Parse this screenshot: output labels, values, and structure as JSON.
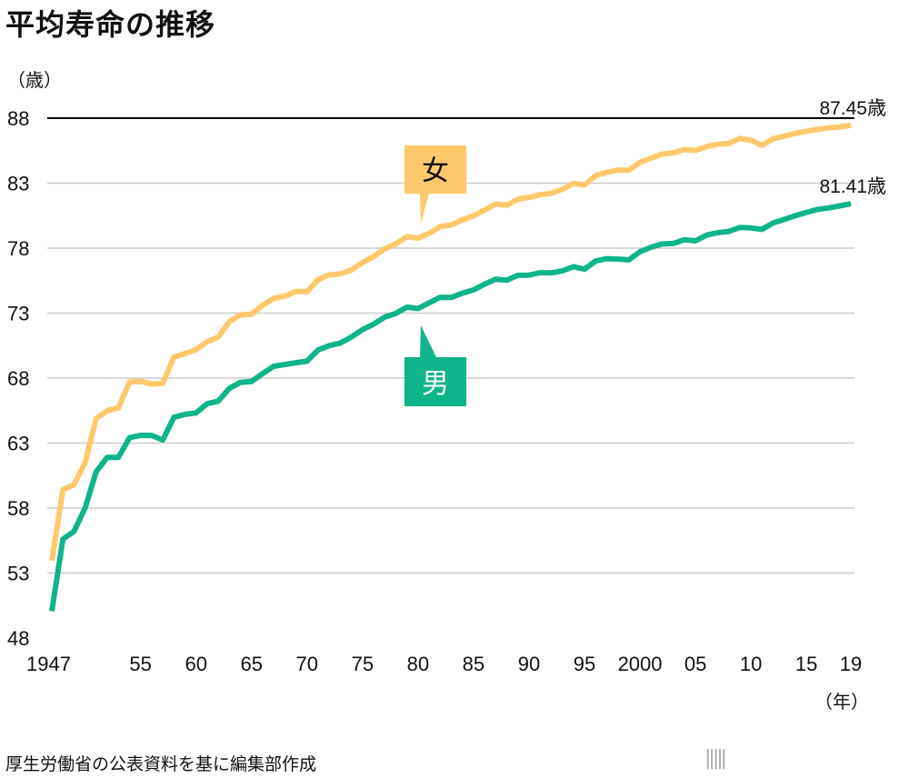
{
  "title": "平均寿命の推移",
  "source": "厚生労働省の公表資料を基に編集部作成",
  "logo": {
    "name": "nippon",
    "dot": ".",
    "tld": "com"
  },
  "chart_data": {
    "type": "line",
    "title": "平均寿命の推移",
    "ylabel": "（歳）",
    "xlabel": "（年）",
    "ylim": [
      48,
      88
    ],
    "xlim": [
      1947,
      2019
    ],
    "yticks": [
      48,
      53,
      58,
      63,
      68,
      73,
      78,
      83,
      88
    ],
    "xticks": [
      {
        "v": 1947,
        "label": "1947"
      },
      {
        "v": 1955,
        "label": "55"
      },
      {
        "v": 1960,
        "label": "60"
      },
      {
        "v": 1965,
        "label": "65"
      },
      {
        "v": 1970,
        "label": "70"
      },
      {
        "v": 1975,
        "label": "75"
      },
      {
        "v": 1980,
        "label": "80"
      },
      {
        "v": 1985,
        "label": "85"
      },
      {
        "v": 1990,
        "label": "90"
      },
      {
        "v": 1995,
        "label": "95"
      },
      {
        "v": 2000,
        "label": "2000"
      },
      {
        "v": 2005,
        "label": "05"
      },
      {
        "v": 2010,
        "label": "10"
      },
      {
        "v": 2015,
        "label": "15"
      },
      {
        "v": 2019,
        "label": "19"
      }
    ],
    "grid": true,
    "x": [
      1947,
      1948,
      1949,
      1950,
      1951,
      1952,
      1953,
      1954,
      1955,
      1956,
      1957,
      1958,
      1959,
      1960,
      1961,
      1962,
      1963,
      1964,
      1965,
      1966,
      1967,
      1968,
      1969,
      1970,
      1971,
      1972,
      1973,
      1974,
      1975,
      1976,
      1977,
      1978,
      1979,
      1980,
      1981,
      1982,
      1983,
      1984,
      1985,
      1986,
      1987,
      1988,
      1989,
      1990,
      1991,
      1992,
      1993,
      1994,
      1995,
      1996,
      1997,
      1998,
      1999,
      2000,
      2001,
      2002,
      2003,
      2004,
      2005,
      2006,
      2007,
      2008,
      2009,
      2010,
      2011,
      2012,
      2013,
      2014,
      2015,
      2016,
      2017,
      2018,
      2019
    ],
    "series": [
      {
        "name": "女",
        "color": "#FFC96B",
        "end_label": "87.45歳",
        "values": [
          53.96,
          59.4,
          59.8,
          61.5,
          64.9,
          65.5,
          65.7,
          67.69,
          67.75,
          67.54,
          67.6,
          69.61,
          69.88,
          70.19,
          70.79,
          71.16,
          72.34,
          72.87,
          72.92,
          73.61,
          74.15,
          74.3,
          74.67,
          74.66,
          75.58,
          75.94,
          76.02,
          76.31,
          76.89,
          77.35,
          77.95,
          78.33,
          78.89,
          78.76,
          79.13,
          79.66,
          79.78,
          80.18,
          80.48,
          80.93,
          81.39,
          81.3,
          81.77,
          81.9,
          82.11,
          82.22,
          82.51,
          82.98,
          82.85,
          83.59,
          83.82,
          84.01,
          83.99,
          84.6,
          84.93,
          85.23,
          85.33,
          85.59,
          85.52,
          85.81,
          85.99,
          86.05,
          86.44,
          86.3,
          85.9,
          86.41,
          86.61,
          86.83,
          86.99,
          87.14,
          87.26,
          87.32,
          87.45
        ]
      },
      {
        "name": "男",
        "color": "#0FB48A",
        "end_label": "81.41歳",
        "values": [
          50.06,
          55.6,
          56.2,
          58.0,
          60.8,
          61.9,
          61.9,
          63.41,
          63.6,
          63.59,
          63.24,
          64.98,
          65.21,
          65.32,
          66.03,
          66.23,
          67.21,
          67.67,
          67.74,
          68.35,
          68.91,
          69.05,
          69.18,
          69.31,
          70.17,
          70.5,
          70.7,
          71.16,
          71.73,
          72.15,
          72.69,
          72.97,
          73.46,
          73.35,
          73.79,
          74.22,
          74.2,
          74.54,
          74.78,
          75.23,
          75.61,
          75.54,
          75.91,
          75.92,
          76.11,
          76.09,
          76.25,
          76.57,
          76.38,
          77.01,
          77.19,
          77.16,
          77.1,
          77.72,
          78.07,
          78.32,
          78.36,
          78.64,
          78.56,
          79.0,
          79.19,
          79.29,
          79.59,
          79.55,
          79.44,
          79.94,
          80.21,
          80.5,
          80.75,
          80.98,
          81.09,
          81.25,
          81.41
        ]
      }
    ]
  }
}
